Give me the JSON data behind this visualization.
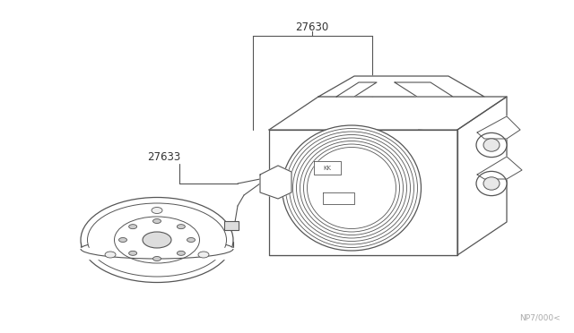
{
  "background_color": "#ffffff",
  "line_color": "#555555",
  "label_color": "#333333",
  "watermark_color": "#aaaaaa",
  "part_label_27630": "27630",
  "part_label_27633": "27633",
  "watermark_text": "NP7/000<",
  "fig_width": 6.4,
  "fig_height": 3.72,
  "dpi": 100
}
